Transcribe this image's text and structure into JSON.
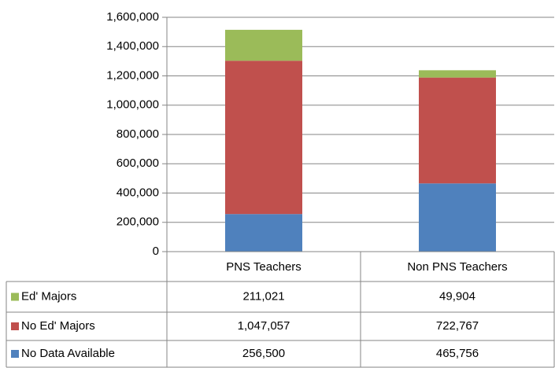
{
  "chart_data": {
    "type": "bar",
    "stacked": true,
    "categories": [
      "PNS Teachers",
      "Non PNS Teachers"
    ],
    "series": [
      {
        "name": "Ed' Majors",
        "color": "#9bbb59",
        "values": [
          211021,
          49904
        ],
        "value_labels": [
          "211,021",
          "49,904"
        ]
      },
      {
        "name": "No Ed' Majors",
        "color": "#c0504d",
        "values": [
          1047057,
          722767
        ],
        "value_labels": [
          "1,047,057",
          "722,767"
        ]
      },
      {
        "name": "No Data Available",
        "color": "#4f81bd",
        "values": [
          256500,
          465756
        ],
        "value_labels": [
          "256,500",
          "465,756"
        ]
      }
    ],
    "ylim": [
      0,
      1600000
    ],
    "yticks": [
      0,
      {
        "value": 200000,
        "label": "200,000"
      },
      {
        "value": 400000,
        "label": "400,000"
      },
      {
        "value": 600000,
        "label": "600,000"
      },
      {
        "value": 800000,
        "label": "800,000"
      },
      {
        "value": 1000000,
        "label": "1,000,000"
      },
      {
        "value": 1200000,
        "label": "1,200,000"
      },
      {
        "value": 1400000,
        "label": "1,400,000"
      },
      {
        "value": 1600000,
        "label": "1,600,000"
      }
    ],
    "grid": true
  }
}
